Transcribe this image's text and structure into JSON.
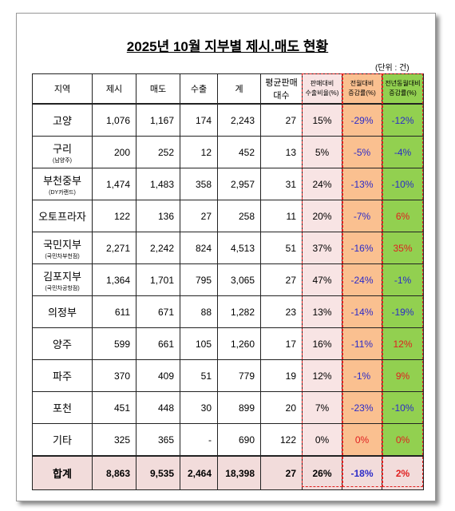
{
  "header": {
    "title": "2025년 10월 지부별 제시.매도 현황",
    "unit": "(단위 : 건)"
  },
  "table": {
    "columns": [
      [
        "지역"
      ],
      [
        "제시"
      ],
      [
        "매도"
      ],
      [
        "수출"
      ],
      [
        "계"
      ],
      [
        "평균판매",
        "대수"
      ],
      [
        "판매대비",
        "수출비율(%)"
      ],
      [
        "전월대비",
        "증감률(%)"
      ],
      [
        "전년동월대비",
        "증감률(%)"
      ]
    ],
    "rows": [
      {
        "region": "고양",
        "values": [
          "1,076",
          "1,167",
          "174",
          "2,243",
          "27",
          "15%",
          "-29%",
          "-12%"
        ]
      },
      {
        "region": "구리",
        "sub": "(남양주)",
        "values": [
          "200",
          "252",
          "12",
          "452",
          "13",
          "5%",
          "-5%",
          "-4%"
        ]
      },
      {
        "region": "부천중부",
        "sub": "(DY카랜드)",
        "values": [
          "1,474",
          "1,483",
          "358",
          "2,957",
          "31",
          "24%",
          "-13%",
          "-10%"
        ]
      },
      {
        "region": "오토프라자",
        "values": [
          "122",
          "136",
          "27",
          "258",
          "11",
          "20%",
          "-7%",
          "6%"
        ]
      },
      {
        "region": "국민지부",
        "sub": "(국민차부천점)",
        "values": [
          "2,271",
          "2,242",
          "824",
          "4,513",
          "51",
          "37%",
          "-16%",
          "35%"
        ]
      },
      {
        "region": "김포지부",
        "sub": "(국민차공항점)",
        "values": [
          "1,364",
          "1,701",
          "795",
          "3,065",
          "27",
          "47%",
          "-24%",
          "-1%"
        ]
      },
      {
        "region": "의정부",
        "values": [
          "611",
          "671",
          "88",
          "1,282",
          "23",
          "13%",
          "-14%",
          "-19%"
        ]
      },
      {
        "region": "양주",
        "values": [
          "599",
          "661",
          "105",
          "1,260",
          "17",
          "16%",
          "-11%",
          "12%"
        ]
      },
      {
        "region": "파주",
        "values": [
          "370",
          "409",
          "51",
          "779",
          "19",
          "12%",
          "-1%",
          "9%"
        ]
      },
      {
        "region": "포천",
        "values": [
          "451",
          "448",
          "30",
          "899",
          "20",
          "7%",
          "-23%",
          "-10%"
        ]
      },
      {
        "region": "기타",
        "values": [
          "325",
          "365",
          "-",
          "690",
          "122",
          "0%",
          "0%",
          "0%"
        ]
      }
    ],
    "total": {
      "region": "합계",
      "values": [
        "8,863",
        "9,535",
        "2,464",
        "18,398",
        "27",
        "26%",
        "-18%",
        "2%"
      ]
    }
  }
}
